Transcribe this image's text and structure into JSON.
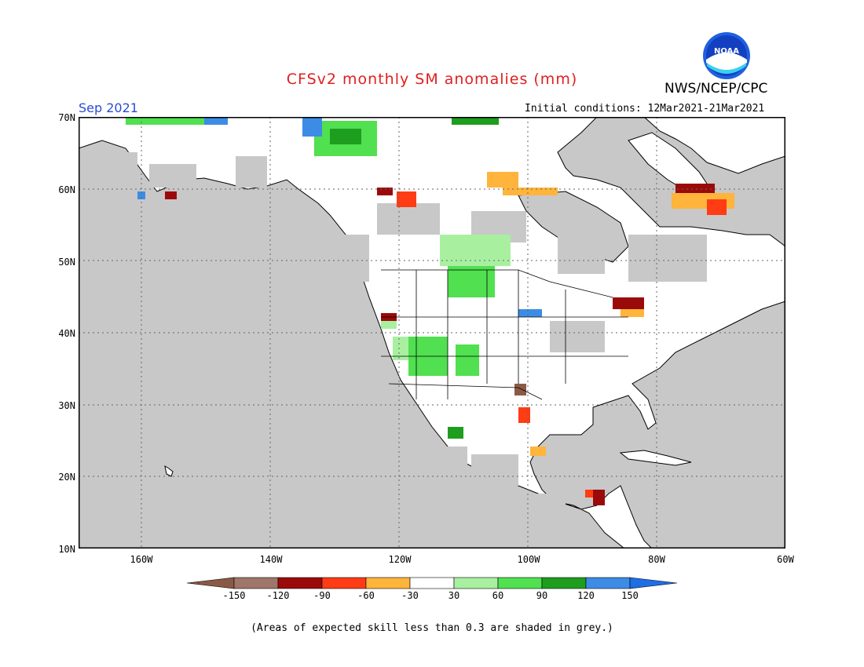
{
  "title": "CFSv2 monthly SM anomalies (mm)",
  "agency": "NWS/NCEP/CPC",
  "logo_text": "NOAA",
  "valid_month": "Sep 2021",
  "initial_conditions": "Initial conditions: 12Mar2021-21Mar2021",
  "lat_labels": [
    "70N",
    "60N",
    "50N",
    "40N",
    "30N",
    "20N",
    "10N"
  ],
  "lon_labels": [
    "160W",
    "140W",
    "120W",
    "100W",
    "80W",
    "60W"
  ],
  "colorbar": {
    "ticks": [
      "-150",
      "-120",
      "-90",
      "-60",
      "-30",
      "30",
      "60",
      "90",
      "120",
      "150"
    ],
    "colors": [
      "#8b5a46",
      "#a0766a",
      "#9b0a0a",
      "#ff3c14",
      "#ffb43c",
      "#ffffff",
      "#a8f0a0",
      "#50e050",
      "#1e9e1e",
      "#3c8ce6",
      "#1e6ee6"
    ]
  },
  "note": "(Areas of expected skill less than 0.3 are shaded in grey.)",
  "colors": {
    "title": "#e02020",
    "month": "#2a4bd7",
    "grey": "#c8c8c8",
    "land": "#ffffff"
  }
}
